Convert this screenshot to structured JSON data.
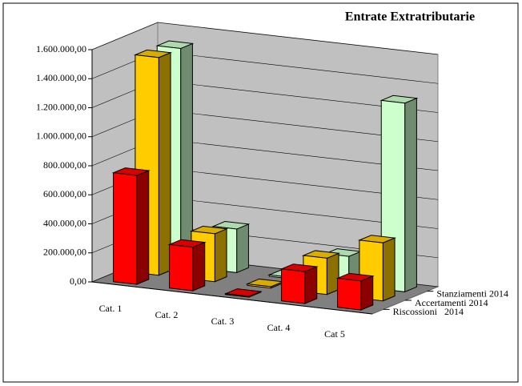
{
  "chart_data": {
    "type": "bar3d",
    "title": "Entrate Extratributarie",
    "categories": [
      "Cat. 1",
      "Cat. 2",
      "Cat. 3",
      "Cat. 4",
      "Cat 5"
    ],
    "series": [
      {
        "name": "Riscossioni   2014",
        "color": "#ff0000",
        "values": [
          750000,
          300000,
          5000,
          220000,
          200000
        ]
      },
      {
        "name": "Accertamenti 2014",
        "color": "#ffcc00",
        "values": [
          1500000,
          330000,
          10000,
          250000,
          400000
        ]
      },
      {
        "name": "Stanziamenti 2014",
        "color": "#ccffcc",
        "values": [
          1500000,
          300000,
          10000,
          200000,
          1300000
        ]
      }
    ],
    "ylim": [
      0,
      1600000
    ],
    "yticks": [
      {
        "value": 0,
        "label": "0,00"
      },
      {
        "value": 200000,
        "label": "200.000,00"
      },
      {
        "value": 400000,
        "label": "400.000,00"
      },
      {
        "value": 600000,
        "label": "600.000,00"
      },
      {
        "value": 800000,
        "label": "800.000,00"
      },
      {
        "value": 1000000,
        "label": "1.000.000,00"
      },
      {
        "value": 1200000,
        "label": "1.200.000,00"
      },
      {
        "value": 1400000,
        "label": "1.400.000,00"
      },
      {
        "value": 1600000,
        "label": "1.600.000,00"
      }
    ],
    "grid": true
  }
}
